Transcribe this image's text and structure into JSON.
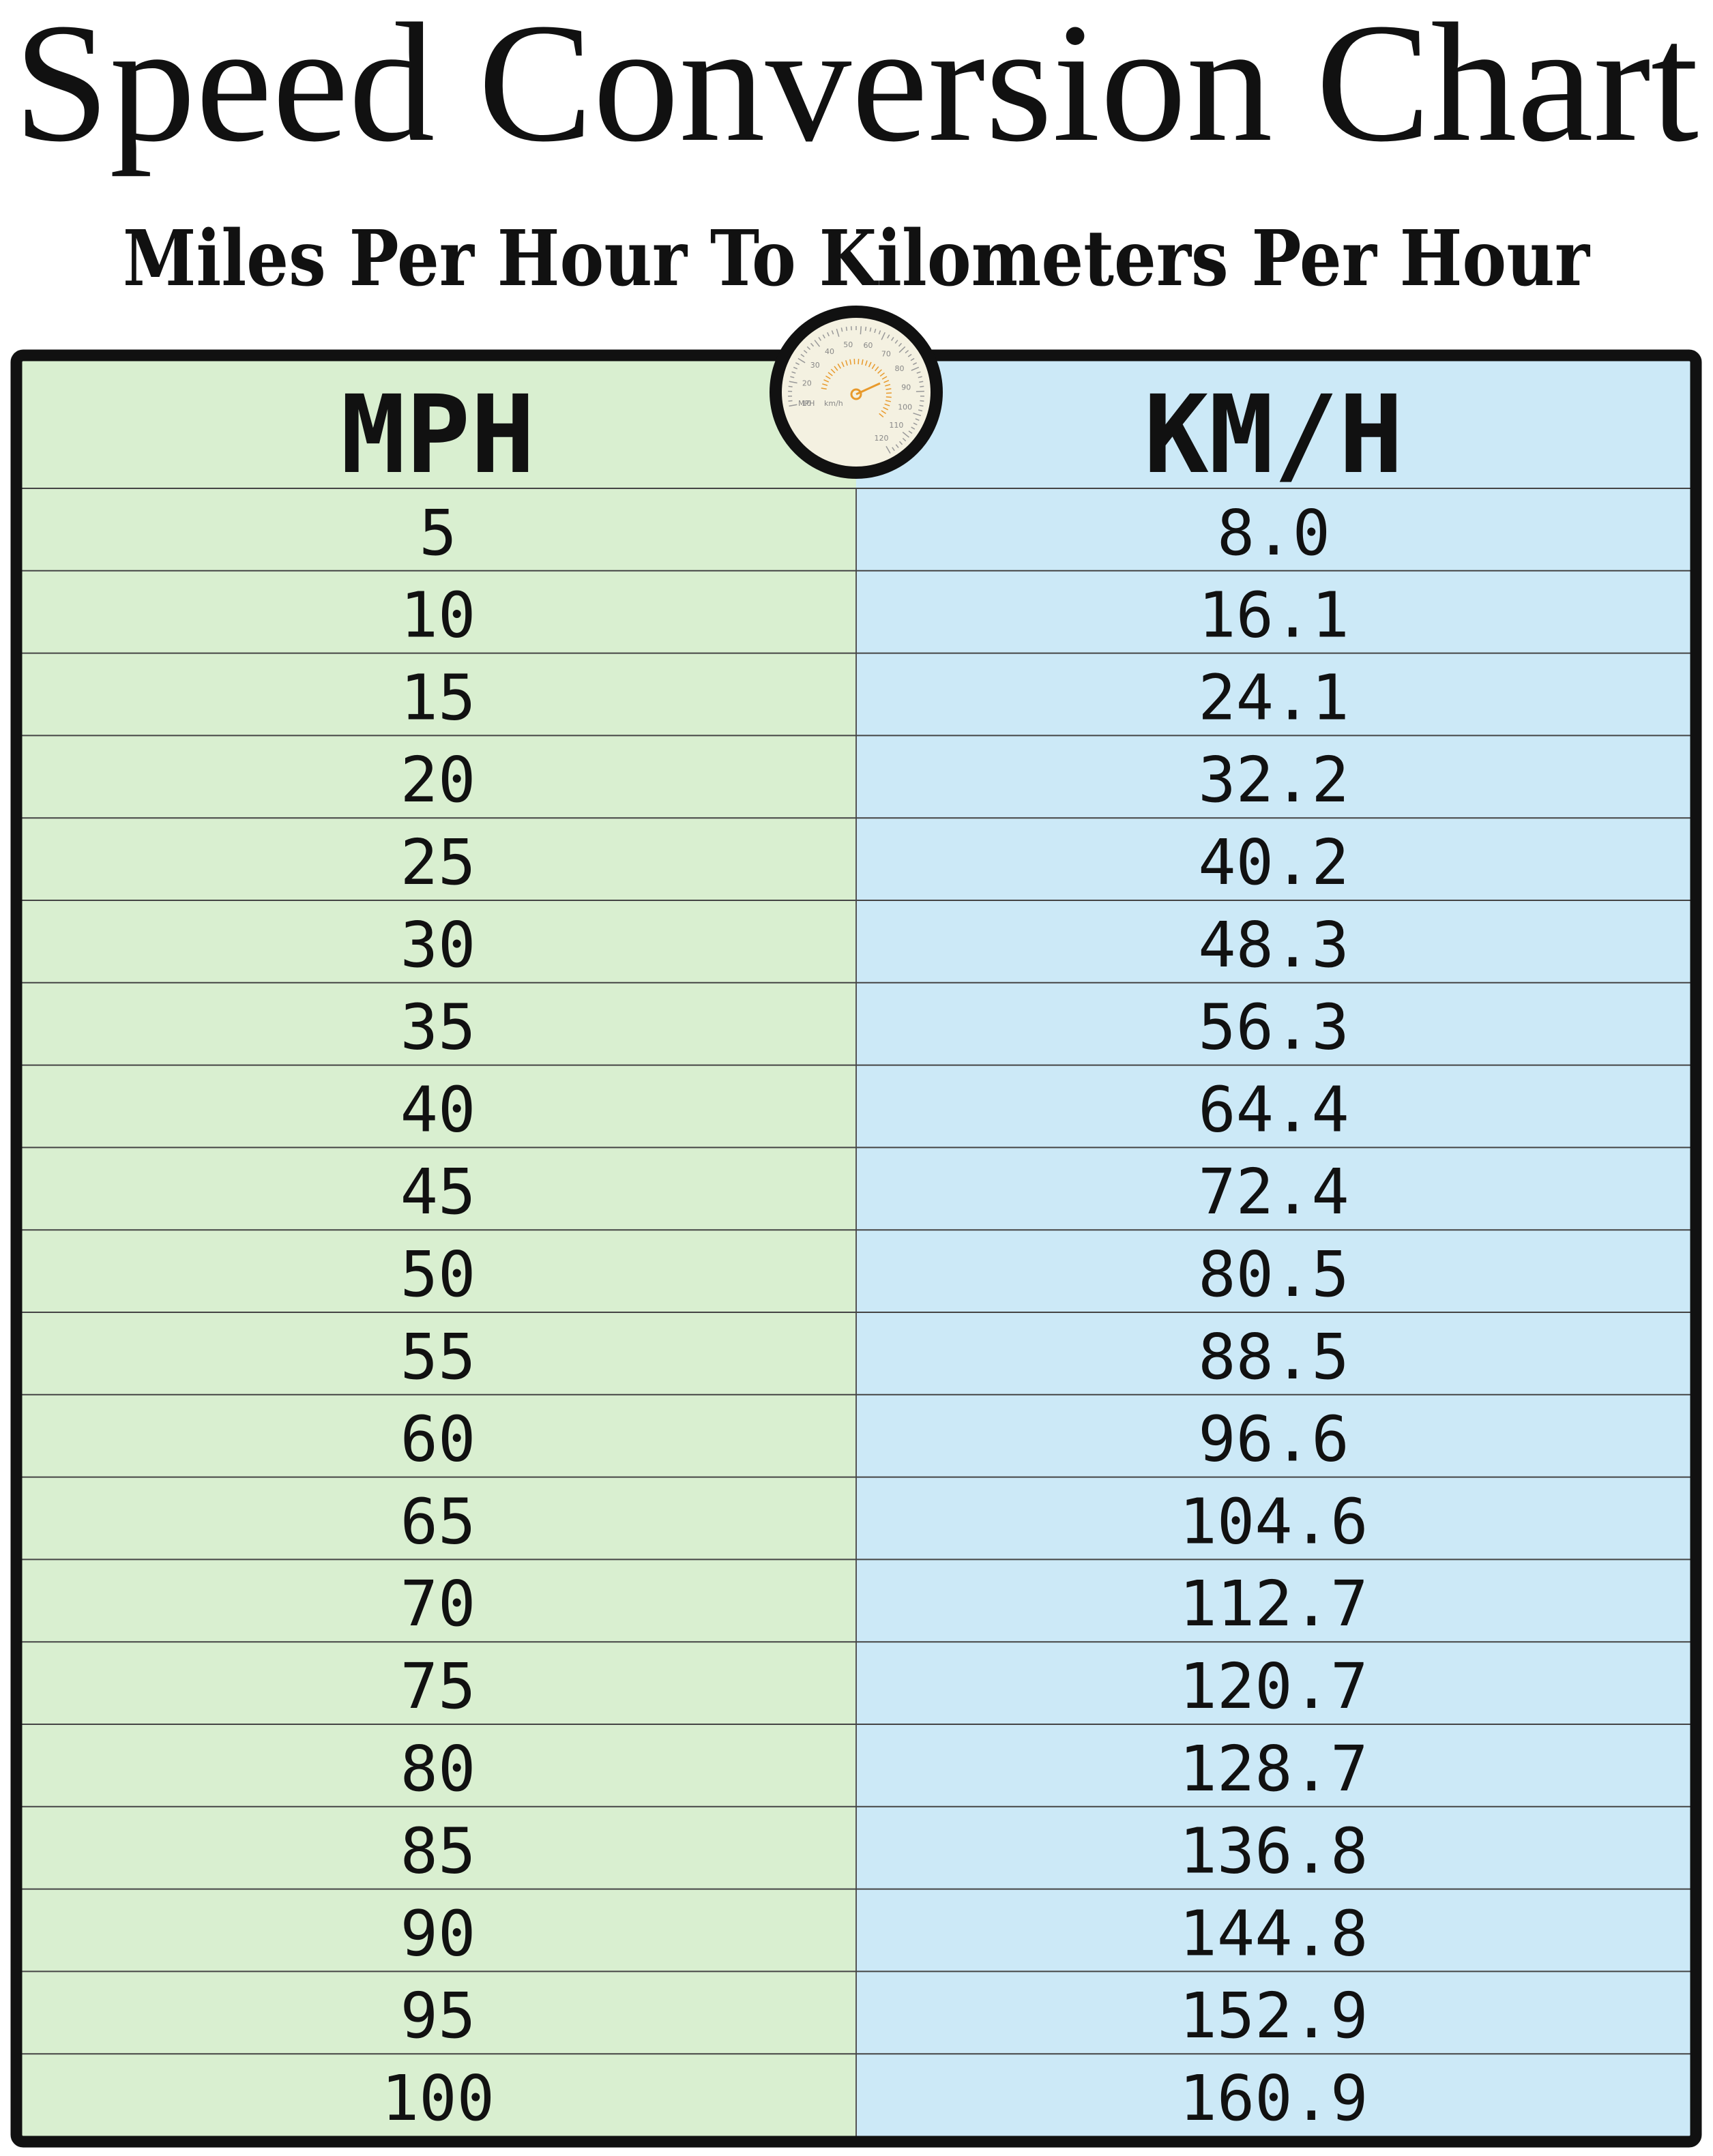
{
  "header": {
    "title": "Speed Conversion Chart",
    "subtitle": "Miles Per Hour To Kilometers Per Hour"
  },
  "gauge": {
    "labels": [
      "10",
      "20",
      "30",
      "40",
      "50",
      "60",
      "70",
      "80",
      "90",
      "100",
      "110",
      "120"
    ],
    "unit_left": "MPH",
    "unit_right": "km/h"
  },
  "table": {
    "columns": [
      "MPH",
      "KM/H"
    ],
    "rows": [
      [
        "5",
        "8.0"
      ],
      [
        "10",
        "16.1"
      ],
      [
        "15",
        "24.1"
      ],
      [
        "20",
        "32.2"
      ],
      [
        "25",
        "40.2"
      ],
      [
        "30",
        "48.3"
      ],
      [
        "35",
        "56.3"
      ],
      [
        "40",
        "64.4"
      ],
      [
        "45",
        "72.4"
      ],
      [
        "50",
        "80.5"
      ],
      [
        "55",
        "88.5"
      ],
      [
        "60",
        "96.6"
      ],
      [
        "65",
        "104.6"
      ],
      [
        "70",
        "112.7"
      ],
      [
        "75",
        "120.7"
      ],
      [
        "80",
        "128.7"
      ],
      [
        "85",
        "136.8"
      ],
      [
        "90",
        "144.8"
      ],
      [
        "95",
        "152.9"
      ],
      [
        "100",
        "160.9"
      ]
    ]
  }
}
